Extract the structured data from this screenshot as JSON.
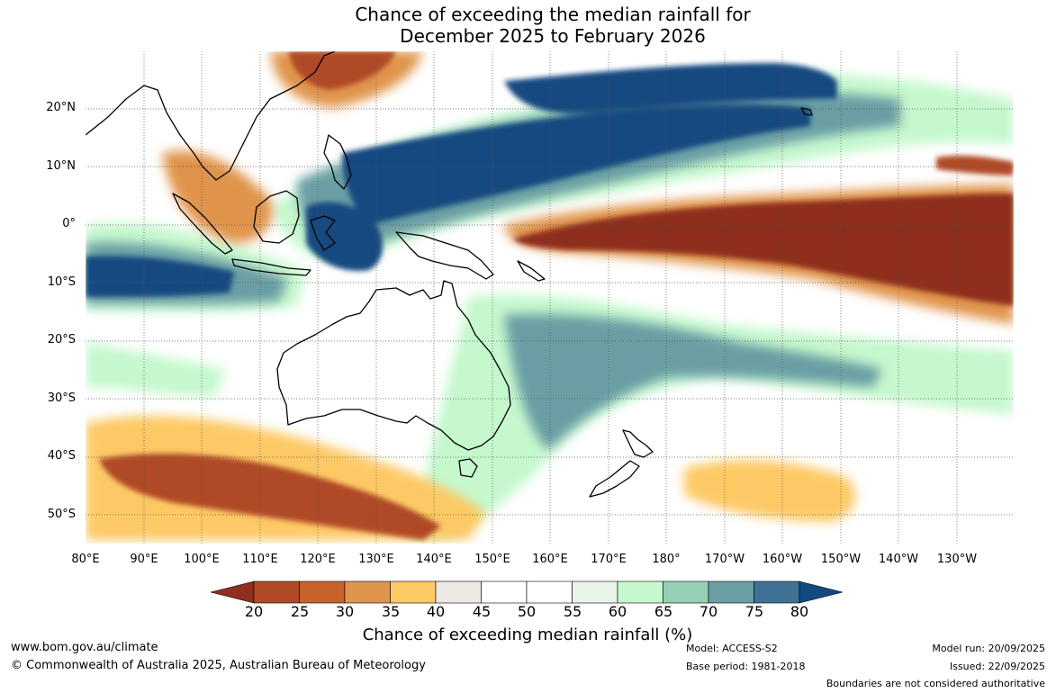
{
  "title": {
    "line1": "Chance of exceeding the median rainfall for",
    "line2": "December 2025 to February 2026"
  },
  "map": {
    "lat_labels": [
      "20°N",
      "10°N",
      "0°",
      "10°S",
      "20°S",
      "30°S",
      "40°S",
      "50°S"
    ],
    "lat_values": [
      20,
      10,
      0,
      -10,
      -20,
      -30,
      -40,
      -50
    ],
    "lon_labels": [
      "80°E",
      "90°E",
      "100°E",
      "110°E",
      "120°E",
      "130°E",
      "140°E",
      "150°E",
      "160°E",
      "170°E",
      "180°",
      "170°W",
      "160°W",
      "150°W",
      "140°W",
      "130°W"
    ],
    "lon_values": [
      80,
      90,
      100,
      110,
      120,
      130,
      140,
      150,
      160,
      170,
      180,
      190,
      200,
      210,
      220,
      230
    ],
    "lon_range": [
      80,
      240
    ],
    "lat_range": [
      -55,
      30
    ],
    "ocean_color": "#ffffff",
    "coast_color": "#000000"
  },
  "colorbar": {
    "ticks": [
      "20",
      "25",
      "30",
      "35",
      "40",
      "45",
      "50",
      "55",
      "60",
      "65",
      "70",
      "75",
      "80"
    ],
    "colors": [
      "#8e2f1f",
      "#b04a26",
      "#c8632d",
      "#e0944b",
      "#fdc965",
      "#ece9e3",
      "#ffffff",
      "#ffffff",
      "#e8f5e8",
      "#c5f8cd",
      "#97ceb6",
      "#6a9ea4",
      "#3f7294",
      "#124a80"
    ],
    "title": "Chance of exceeding median rainfall (%)"
  },
  "footer": {
    "url": "www.bom.gov.au/climate",
    "copyright": "© Commonwealth of Australia 2025, Australian Bureau of Meteorology",
    "model": "Model: ACCESS-S2",
    "base_period": "Base period: 1981-2018",
    "model_run": "Model run: 20/09/2025",
    "issued": "Issued: 22/09/2025",
    "disclaimer": "Boundaries are not considered authoritative"
  }
}
